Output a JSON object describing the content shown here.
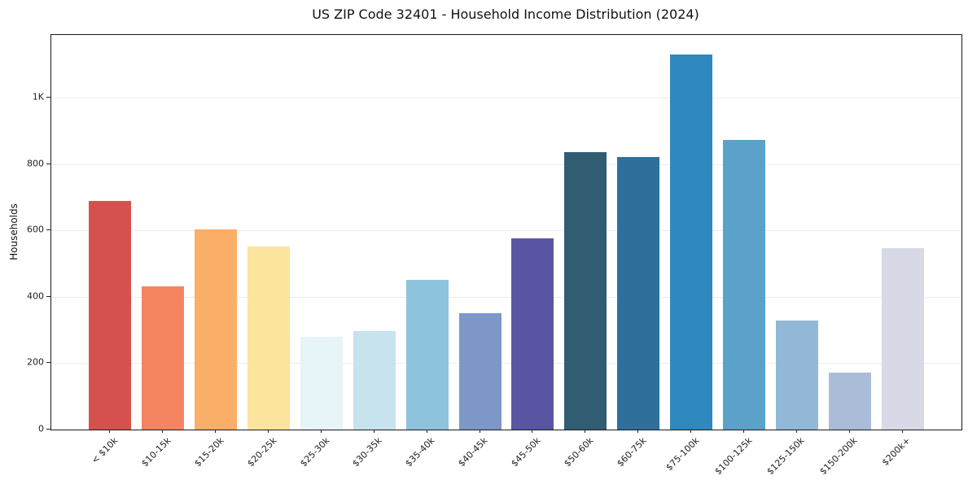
{
  "chart_data": {
    "type": "bar",
    "title": "US ZIP Code 32401 - Household Income Distribution (2024)",
    "xlabel": "",
    "ylabel": "Households",
    "ylim": [
      0,
      1190
    ],
    "grid": "horizontal",
    "legend": "none",
    "categories": [
      "< $10k",
      "$10-15k",
      "$15-20k",
      "$20-25k",
      "$25-30k",
      "$30-35k",
      "$35-40k",
      "$40-45k",
      "$45-50k",
      "$50-60k",
      "$60-75k",
      "$75-100k",
      "$100-125k",
      "$125-150k",
      "$150-200k",
      "$200k+"
    ],
    "values": [
      690,
      432,
      603,
      552,
      280,
      296,
      451,
      352,
      577,
      837,
      822,
      1130,
      874,
      328,
      171,
      547
    ],
    "bar_colors": [
      "#d5514d",
      "#f58460",
      "#fbae67",
      "#fde49c",
      "#e7f4f8",
      "#c6e3ee",
      "#8ec3de",
      "#7d97c8",
      "#5a55a3",
      "#315d73",
      "#2e6f9b",
      "#2f88be",
      "#5aa2c9",
      "#93b7d7",
      "#aabcd8",
      "#d8d9e7"
    ],
    "yticks": [
      {
        "label": "0",
        "value": 0
      },
      {
        "label": "200",
        "value": 200
      },
      {
        "label": "400",
        "value": 400
      },
      {
        "label": "600",
        "value": 600
      },
      {
        "label": "800",
        "value": 800
      },
      {
        "label": "1K",
        "value": 1000
      }
    ]
  }
}
